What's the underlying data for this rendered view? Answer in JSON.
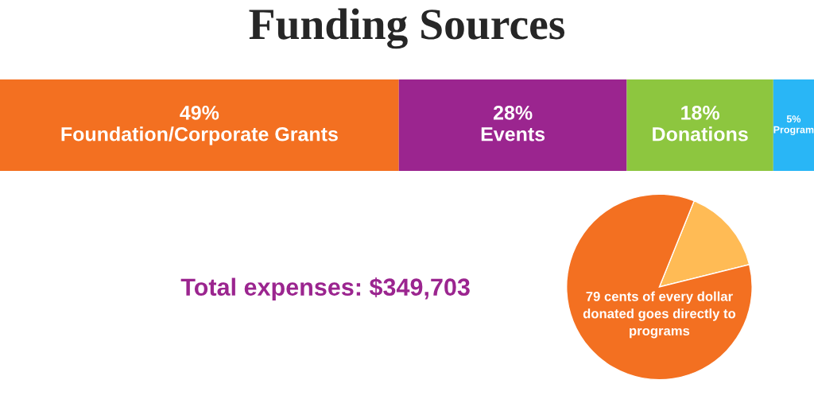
{
  "chart_data": [
    {
      "type": "bar",
      "orientation": "horizontal",
      "stacked": true,
      "title": "Funding Sources",
      "categories": [
        null
      ],
      "series": [
        {
          "name": "Foundation/Corporate Grants",
          "color": "#f37021",
          "values": [
            49
          ],
          "value_labels": [
            "49%"
          ]
        },
        {
          "name": "Events",
          "color": "#9b258f",
          "values": [
            28
          ],
          "value_labels": [
            "28%"
          ]
        },
        {
          "name": "Donations",
          "color": "#8dc63f",
          "values": [
            18
          ],
          "value_labels": [
            "18%"
          ]
        },
        {
          "name": "Program",
          "color": "#29b6f6",
          "values": [
            5
          ],
          "value_labels": [
            "5%"
          ]
        }
      ],
      "annotations": [
        "Total expenses: $349,703"
      ]
    },
    {
      "type": "pie",
      "categories": [
        null,
        null
      ],
      "values": [
        15,
        85
      ],
      "colors": [
        "#ffbb55",
        "#f37021"
      ],
      "annotations": [
        "79 cents of every dollar\ndonated goes directly to\nprograms"
      ]
    }
  ]
}
